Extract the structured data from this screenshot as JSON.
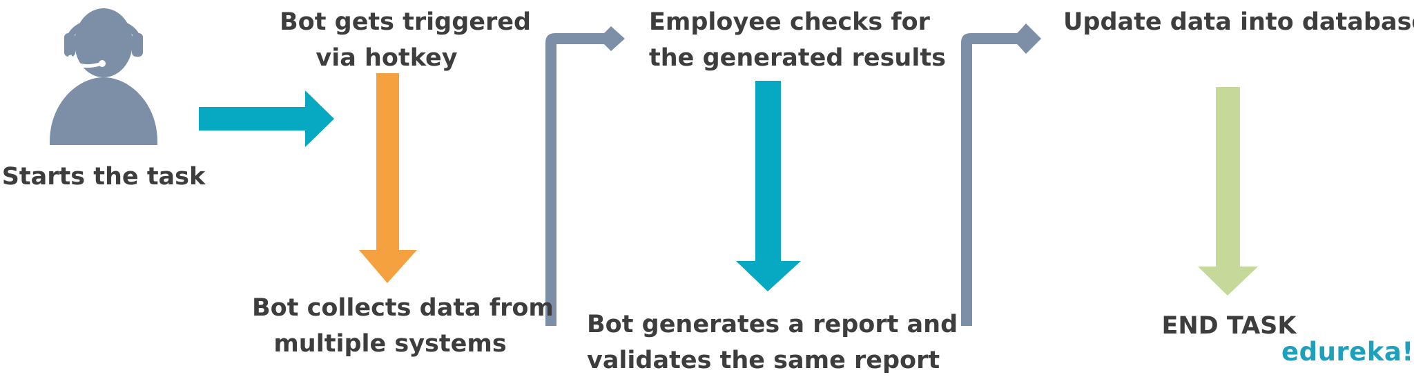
{
  "steps": {
    "start": {
      "line1": "Starts the task"
    },
    "trigger": {
      "line1": "Bot gets triggered",
      "line2": "via hotkey"
    },
    "collect": {
      "line1": "Bot collects data from",
      "line2": "multiple systems"
    },
    "check": {
      "line1": "Employee checks for",
      "line2": "the generated results"
    },
    "report": {
      "line1": "Bot generates a report and",
      "line2": "validates the same report"
    },
    "update": {
      "line1": "Update data into database"
    },
    "end": {
      "line1": "END TASK"
    }
  },
  "brand": {
    "logo_text": "edureka!"
  },
  "icons": {
    "person": "operator-headset-icon"
  },
  "colors": {
    "text": "#3d3d3d",
    "person": "#7d8fa6",
    "teal": "#07a8c1",
    "orange": "#f5a13f",
    "connector": "#7d8fa6",
    "green": "#c6d89a",
    "brand": "#1ea0bd"
  }
}
